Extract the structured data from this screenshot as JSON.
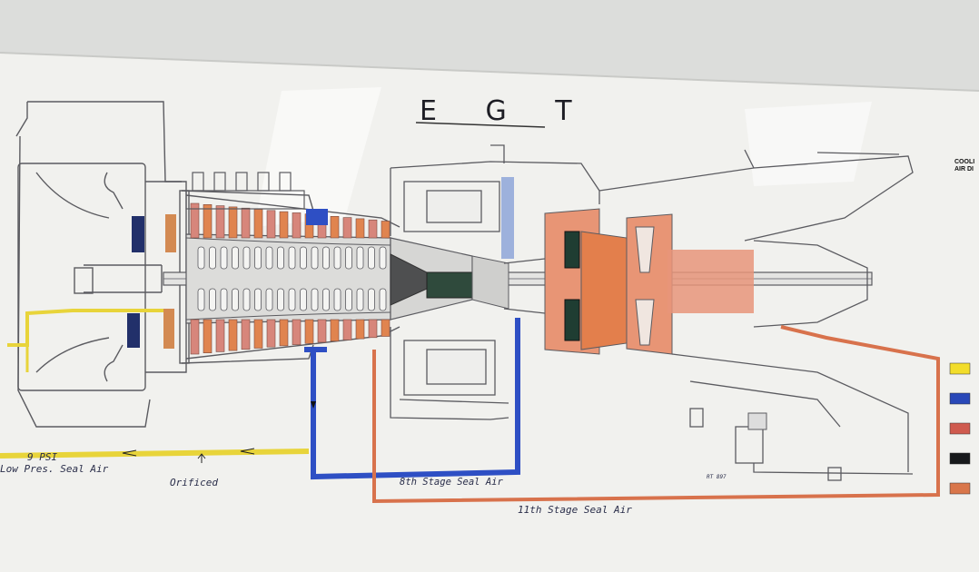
{
  "title": "E G T",
  "labels": {
    "psi": "9 PSI",
    "low_pres": "Low Pres. Seal Air",
    "orificed": "Orificed",
    "eighth_stage": "8th Stage Seal Air",
    "eighth_stage_sup": "th",
    "eleventh_stage": "11th Stage Seal Air",
    "eleventh_stage_sup": "th",
    "drawing_no": "RT 897"
  },
  "legend": {
    "heading_line1": "COOLI",
    "heading_line2": "AIR DI",
    "swatches": [
      {
        "name": "yellow",
        "color": "#f2dd2a"
      },
      {
        "name": "blue",
        "color": "#2948b8"
      },
      {
        "name": "red",
        "color": "#cf5a4e"
      },
      {
        "name": "black",
        "color": "#17191b"
      },
      {
        "name": "orange",
        "color": "#d9764a"
      }
    ]
  },
  "colors": {
    "paper": "#f1f1ee",
    "ink": "#5b5b60",
    "yellow_line": "#e8d43a",
    "blue_line": "#2e4fc4",
    "orange_line": "#d8724c",
    "blade_red": "#d7867b",
    "blade_orange": "#e0844f",
    "turbine_orange": "#e37f4c"
  }
}
